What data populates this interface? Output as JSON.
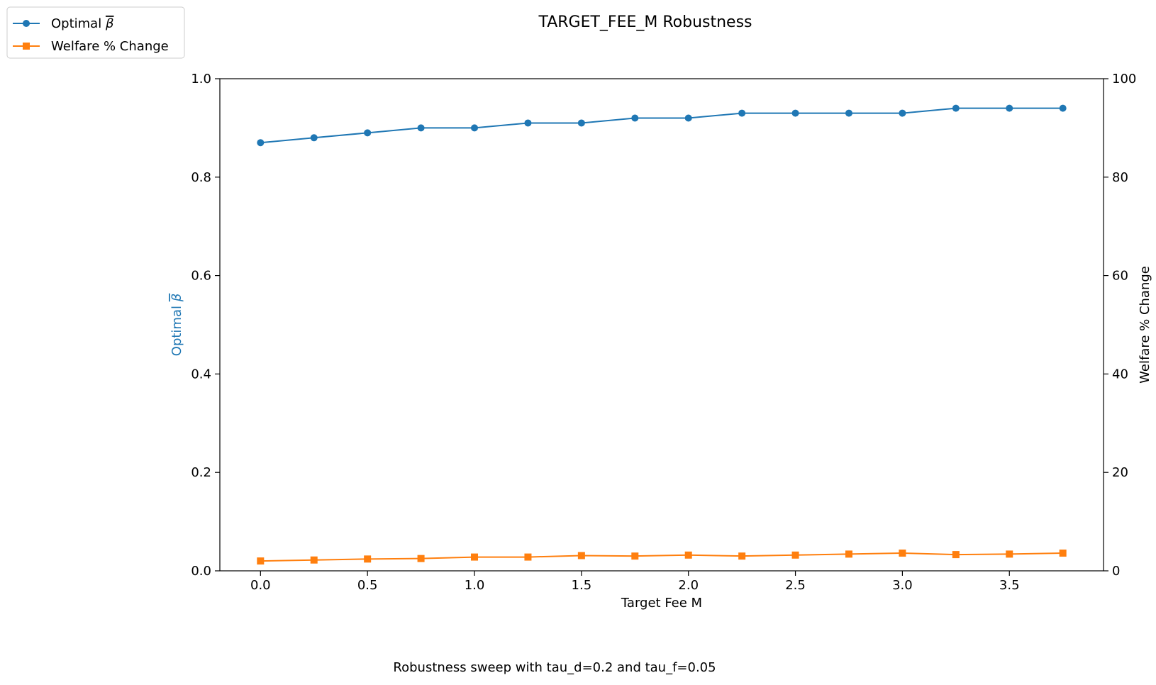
{
  "chart_data": {
    "type": "line",
    "title": "TARGET_FEE_M Robustness",
    "xlabel": "Target Fee M",
    "ylabel_left": "Optimal β̅",
    "ylabel_left_prefix": "Optimal ",
    "ylabel_left_symbol": "β",
    "ylabel_right": "Welfare % Change",
    "caption": "Robustness sweep with tau_d=0.2 and tau_f=0.05",
    "xlim": [
      -0.19,
      3.94
    ],
    "ylim_left": [
      0.0,
      1.0
    ],
    "ylim_right": [
      0,
      100
    ],
    "x_ticks": [
      0.0,
      0.5,
      1.0,
      1.5,
      2.0,
      2.5,
      3.0,
      3.5
    ],
    "x_tick_labels": [
      "0.0",
      "0.5",
      "1.0",
      "1.5",
      "2.0",
      "2.5",
      "3.0",
      "3.5"
    ],
    "y_left_ticks": [
      0.0,
      0.2,
      0.4,
      0.6,
      0.8,
      1.0
    ],
    "y_left_tick_labels": [
      "0.0",
      "0.2",
      "0.4",
      "0.6",
      "0.8",
      "1.0"
    ],
    "y_right_ticks": [
      0,
      20,
      40,
      60,
      80,
      100
    ],
    "y_right_tick_labels": [
      "0",
      "20",
      "40",
      "60",
      "80",
      "100"
    ],
    "x": [
      0.0,
      0.25,
      0.5,
      0.75,
      1.0,
      1.25,
      1.5,
      1.75,
      2.0,
      2.25,
      2.5,
      2.75,
      3.0,
      3.25,
      3.5,
      3.75
    ],
    "grid": false,
    "legend_placement": "top-left outside",
    "series": [
      {
        "name": "Optimal β̅",
        "name_prefix": "Optimal ",
        "name_symbol": "β",
        "axis": "left",
        "color": "#1f77b4",
        "marker": "circle",
        "values": [
          0.87,
          0.88,
          0.89,
          0.9,
          0.9,
          0.91,
          0.91,
          0.92,
          0.92,
          0.93,
          0.93,
          0.93,
          0.93,
          0.94,
          0.94,
          0.94
        ]
      },
      {
        "name": "Welfare % Change",
        "axis": "right",
        "color": "#ff7f0e",
        "marker": "square",
        "values": [
          2.0,
          2.2,
          2.4,
          2.5,
          2.8,
          2.8,
          3.1,
          3.0,
          3.2,
          3.0,
          3.2,
          3.4,
          3.6,
          3.3,
          3.4,
          3.6
        ]
      }
    ]
  }
}
